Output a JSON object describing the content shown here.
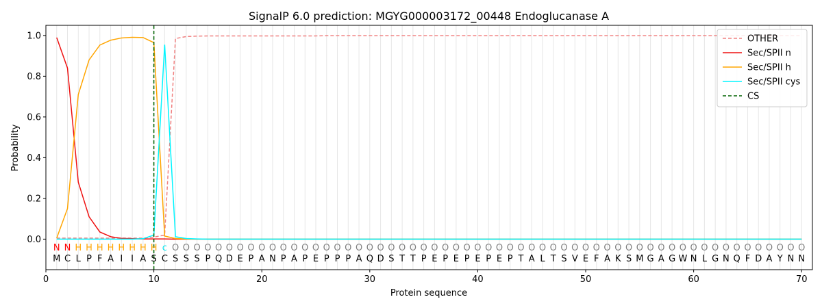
{
  "chart_data": {
    "type": "line",
    "title": "SignalP 6.0 prediction: MGYG000003172_00448 Endoglucanase A",
    "xlabel": "Protein sequence",
    "ylabel": "Probability",
    "xlim": [
      0,
      71
    ],
    "ylim": [
      -0.15,
      1.05
    ],
    "xticks": [
      0,
      10,
      20,
      30,
      40,
      50,
      60,
      70
    ],
    "yticks": [
      0.0,
      0.2,
      0.4,
      0.6,
      0.8,
      1.0
    ],
    "ytick_labels": [
      "0.0",
      "0.2",
      "0.4",
      "0.6",
      "0.8",
      "1.0"
    ],
    "legend_position": "top-right",
    "sequence": [
      "M",
      "C",
      "L",
      "P",
      "F",
      "A",
      "I",
      "I",
      "A",
      "S",
      "C",
      "S",
      "S",
      "S",
      "P",
      "Q",
      "D",
      "E",
      "P",
      "A",
      "N",
      "P",
      "A",
      "P",
      "E",
      "P",
      "P",
      "P",
      "A",
      "Q",
      "D",
      "S",
      "T",
      "T",
      "P",
      "E",
      "P",
      "E",
      "P",
      "E",
      "P",
      "E",
      "P",
      "T",
      "A",
      "L",
      "T",
      "S",
      "V",
      "E",
      "F",
      "A",
      "K",
      "S",
      "M",
      "G",
      "A",
      "G",
      "W",
      "N",
      "L",
      "G",
      "N",
      "Q",
      "F",
      "D",
      "A",
      "Y",
      "N",
      "N"
    ],
    "labels": [
      "N",
      "N",
      "H",
      "H",
      "H",
      "H",
      "H",
      "H",
      "H",
      "H",
      "c",
      "O",
      "O",
      "O",
      "O",
      "O",
      "O",
      "O",
      "O",
      "O",
      "O",
      "O",
      "O",
      "O",
      "O",
      "O",
      "O",
      "O",
      "O",
      "O",
      "O",
      "O",
      "O",
      "O",
      "O",
      "O",
      "O",
      "O",
      "O",
      "O",
      "O",
      "O",
      "O",
      "O",
      "O",
      "O",
      "O",
      "O",
      "O",
      "O",
      "O",
      "O",
      "O",
      "O",
      "O",
      "O",
      "O",
      "O",
      "O",
      "O",
      "O",
      "O",
      "O",
      "O",
      "O",
      "O",
      "O",
      "O",
      "O",
      "O"
    ],
    "label_colors": {
      "N": "#ff0000",
      "H": "#ffa500",
      "c": "#00e5ee",
      "O": "#808080"
    },
    "cs_position": 10,
    "series": [
      {
        "name": "OTHER",
        "color": "#f08080",
        "dashed": true,
        "values": [
          0.005,
          0.005,
          0.005,
          0.005,
          0.005,
          0.005,
          0.005,
          0.005,
          0.005,
          0.01,
          0.02,
          0.985,
          0.995,
          0.997,
          0.998,
          0.998,
          0.998,
          0.998,
          0.998,
          0.998,
          0.998,
          0.998,
          0.998,
          0.998,
          0.998,
          0.999,
          0.999,
          0.999,
          0.999,
          0.999,
          0.999,
          0.999,
          0.999,
          0.999,
          0.999,
          0.999,
          0.999,
          0.999,
          0.999,
          0.999,
          0.999,
          0.999,
          0.999,
          0.999,
          0.999,
          0.999,
          0.999,
          0.999,
          0.999,
          0.999,
          0.999,
          0.999,
          0.999,
          0.999,
          0.999,
          0.999,
          0.999,
          0.999,
          0.999,
          0.999,
          0.999,
          0.999,
          0.999,
          0.999,
          0.999,
          0.999,
          0.999,
          0.999,
          0.999,
          0.999
        ]
      },
      {
        "name": "Sec/SPII n",
        "color": "#ee1111",
        "dashed": false,
        "values": [
          0.99,
          0.84,
          0.28,
          0.11,
          0.035,
          0.012,
          0.004,
          0.002,
          0.001,
          0.001,
          0.001,
          0.0,
          0.0,
          0.0,
          0.0,
          0.0,
          0.0,
          0.0,
          0.0,
          0.0,
          0.0,
          0.0,
          0.0,
          0.0,
          0.0,
          0.0,
          0.0,
          0.0,
          0.0,
          0.0,
          0.0,
          0.0,
          0.0,
          0.0,
          0.0,
          0.0,
          0.0,
          0.0,
          0.0,
          0.0,
          0.0,
          0.0,
          0.0,
          0.0,
          0.0,
          0.0,
          0.0,
          0.0,
          0.0,
          0.0,
          0.0,
          0.0,
          0.0,
          0.0,
          0.0,
          0.0,
          0.0,
          0.0,
          0.0,
          0.0,
          0.0,
          0.0,
          0.0,
          0.0,
          0.0,
          0.0,
          0.0,
          0.0,
          0.0,
          0.0
        ]
      },
      {
        "name": "Sec/SPII h",
        "color": "#ffa500",
        "dashed": false,
        "values": [
          0.005,
          0.15,
          0.71,
          0.88,
          0.953,
          0.977,
          0.988,
          0.991,
          0.99,
          0.965,
          0.015,
          0.003,
          0.001,
          0.0,
          0.0,
          0.0,
          0.0,
          0.0,
          0.0,
          0.0,
          0.0,
          0.0,
          0.0,
          0.0,
          0.0,
          0.0,
          0.0,
          0.0,
          0.0,
          0.0,
          0.0,
          0.0,
          0.0,
          0.0,
          0.0,
          0.0,
          0.0,
          0.0,
          0.0,
          0.0,
          0.0,
          0.0,
          0.0,
          0.0,
          0.0,
          0.0,
          0.0,
          0.0,
          0.0,
          0.0,
          0.0,
          0.0,
          0.0,
          0.0,
          0.0,
          0.0,
          0.0,
          0.0,
          0.0,
          0.0,
          0.0,
          0.0,
          0.0,
          0.0,
          0.0,
          0.0,
          0.0,
          0.0,
          0.0,
          0.0
        ]
      },
      {
        "name": "Sec/SPII cys",
        "color": "#00f5ff",
        "dashed": false,
        "values": [
          0.0,
          0.0,
          0.0,
          0.0,
          0.0,
          0.0,
          0.0,
          0.0,
          0.002,
          0.02,
          0.955,
          0.012,
          0.003,
          0.001,
          0.0,
          0.0,
          0.0,
          0.0,
          0.0,
          0.0,
          0.0,
          0.0,
          0.0,
          0.0,
          0.0,
          0.0,
          0.0,
          0.0,
          0.0,
          0.0,
          0.0,
          0.0,
          0.0,
          0.0,
          0.0,
          0.0,
          0.0,
          0.0,
          0.0,
          0.0,
          0.0,
          0.0,
          0.0,
          0.0,
          0.0,
          0.0,
          0.0,
          0.0,
          0.0,
          0.0,
          0.0,
          0.0,
          0.0,
          0.0,
          0.0,
          0.0,
          0.0,
          0.0,
          0.0,
          0.0,
          0.0,
          0.0,
          0.0,
          0.0,
          0.0,
          0.0,
          0.0,
          0.0,
          0.0,
          0.0
        ]
      }
    ],
    "cs_legend": {
      "name": "CS",
      "color": "#006400"
    }
  }
}
